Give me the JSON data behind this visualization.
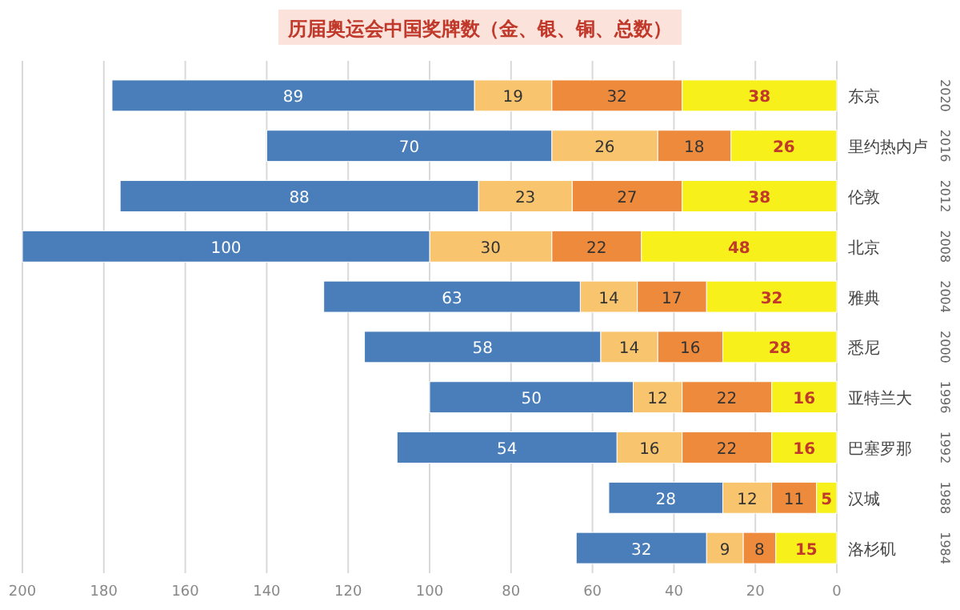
{
  "chart_data": {
    "type": "bar",
    "orientation": "horizontal",
    "stacked": true,
    "title": "历届奥运会中国奖牌数（金、银、铜、总数）",
    "categories": [
      "东京",
      "里约热内卢",
      "伦敦",
      "北京",
      "雅典",
      "悉尼",
      "亚特兰大",
      "巴塞罗那",
      "汉城",
      "洛杉矶"
    ],
    "y2_categories": [
      "2020",
      "2016",
      "2012",
      "2008",
      "2004",
      "2000",
      "1996",
      "1992",
      "1988",
      "1984"
    ],
    "series": [
      {
        "color": "#f7f01a",
        "values": [
          38,
          26,
          38,
          48,
          32,
          28,
          16,
          16,
          5,
          15
        ]
      },
      {
        "color": "#ee8a3c",
        "values": [
          32,
          18,
          27,
          22,
          17,
          16,
          22,
          22,
          11,
          8
        ]
      },
      {
        "color": "#f8c56e",
        "values": [
          19,
          26,
          23,
          30,
          14,
          14,
          12,
          16,
          12,
          9
        ]
      },
      {
        "color": "#4a7ebb",
        "values": [
          89,
          70,
          88,
          100,
          63,
          58,
          50,
          54,
          28,
          32
        ]
      }
    ],
    "xlim": [
      200,
      0
    ],
    "xticks": [
      0,
      20,
      40,
      60,
      80,
      100,
      120,
      140,
      160,
      180,
      200
    ],
    "grid": "x",
    "data_labels": true
  }
}
